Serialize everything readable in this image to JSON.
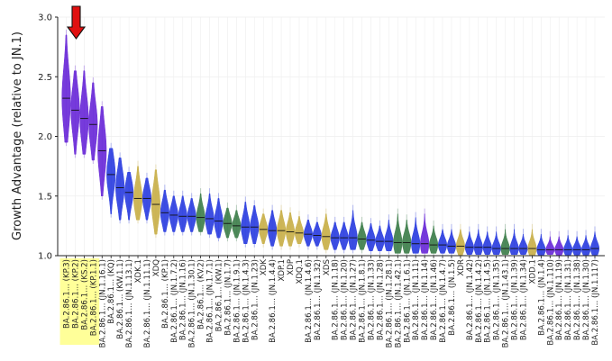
{
  "chart_data": {
    "type": "violin",
    "title": "",
    "xlabel": "",
    "ylabel": "Growth Advantage (relative to JN.1)",
    "ylim": [
      1.0,
      3.0
    ],
    "yticks": [
      "1.0",
      "1.5",
      "2.0",
      "2.5",
      "3.0"
    ],
    "grid": true,
    "legend": "none",
    "colors": {
      "purple": "#6a2ad8",
      "blue": "#2d3fe0",
      "green": "#3f7f4c",
      "gold": "#c9b04a",
      "highlight": "#ffff99",
      "arrow": "#e01010",
      "axis": "#222222",
      "grid": "#eeeeee"
    },
    "highlighted_labels": [
      "BA.2.86.1... (KP.3)",
      "BA.2.86.1... (KP.2)",
      "BA.2.86.1... (KS.2)",
      "BA.2.86.1... (KP.1.1)"
    ],
    "arrow_target": "BA.2.86.1... (KP.3)",
    "labels": [
      "BA.2.86.1... (KP.3)",
      "BA.2.86.1... (KP.2)",
      "BA.2.86.1... (KS.2)",
      "BA.2.86.1... (KP.1.1)",
      "BA.2.86.1... (JN.1.16.1)",
      "BA.2.86.1... (KQ)",
      "BA.2.86.1... (KW.1.1)",
      "BA.2.86.1... (JN.1.13.1)",
      "XDK.1",
      "BA.2.86.1... (JN.1.11.1)",
      "XDQ",
      "BA.2.86.1... (KP.1)",
      "BA.2.86.1... (JN.1.7.2)",
      "BA.2.86.1... (JN.1.16)",
      "BA.2.86.1... (JN.1.30.1)",
      "BA.2.86.1... (KV.2)",
      "BA.2.86.1... (JN.1.7.1)",
      "BA.2.86.1... (KW.1)",
      "BA.2.86.1... (JN.1.7)",
      "BA.2.86.1... (JN.1.9.1)",
      "BA.2.86.1... (JN.1.4.3)",
      "BA.2.86.1... (JN.1.23)",
      "XDK",
      "BA.2.86.1... (JN.1.4.4)",
      "XDP.1",
      "XDP",
      "XDQ.1",
      "BA.2.86.1... (JN.1.4.6)",
      "BA.2.86.1... (JN.1.32)",
      "XDS",
      "BA.2.86.1... (JN.1.18)",
      "BA.2.86.1... (JN.1.20)",
      "BA.2.86.1... (JN.1.27)",
      "BA.2.86.1... (JN.1.8.1)",
      "BA.2.86.1... (JN.1.33)",
      "BA.2.86.1... (JN.1.28)",
      "BA.2.86.1... (JN.1.28.1)",
      "BA.2.86.1... (JN.1.42.1)",
      "BA.2.86.1... (JN.1.6.1)",
      "BA.2.86.1... (JN.1.11)",
      "BA.2.86.1... (JN.1.14)",
      "BA.2.86.1... (JN.1.46)",
      "BA.2.86.1... (JN.1.4.7)",
      "BA.2.86.1... (JN.1.5)",
      "XDR",
      "BA.2.86.1... (JN.1.42)",
      "BA.2.86.1... (JN.1.4.2)",
      "BA.2.86.1... (JN.1.4.5)",
      "BA.2.86.1... (JN.1.35)",
      "BA.2.86.1... (JN.1.43.1)",
      "BA.2.86.1... (JN.1.39)",
      "BA.2.86.1... (JN.1.34)",
      "XDD.1",
      "BA.2.86.1... (JN.1.4)",
      "BA.2.86.1... (JN.1.110)",
      "BA.2.86.1... (JN.1.19)",
      "BA.2.86.1... (JN.1.31)",
      "BA.2.86.1... (JN.1.38)",
      "BA.2.86.1... (JN.1.30)",
      "BA.2.86.1... (JN.1.117)"
    ],
    "medians": [
      2.32,
      2.22,
      2.15,
      2.1,
      1.88,
      1.68,
      1.57,
      1.53,
      1.48,
      1.48,
      1.43,
      1.36,
      1.34,
      1.33,
      1.33,
      1.32,
      1.31,
      1.29,
      1.27,
      1.25,
      1.24,
      1.24,
      1.22,
      1.21,
      1.21,
      1.2,
      1.19,
      1.18,
      1.17,
      1.16,
      1.15,
      1.15,
      1.15,
      1.14,
      1.13,
      1.12,
      1.12,
      1.11,
      1.11,
      1.1,
      1.1,
      1.09,
      1.09,
      1.08,
      1.08,
      1.07,
      1.07,
      1.07,
      1.06,
      1.06,
      1.06,
      1.06,
      1.06,
      1.05,
      1.05,
      1.05,
      1.05,
      1.05,
      1.05,
      1.06
    ],
    "lows": [
      1.95,
      1.85,
      1.85,
      1.8,
      1.5,
      1.35,
      1.3,
      1.3,
      1.3,
      1.3,
      1.18,
      1.2,
      1.2,
      1.2,
      1.2,
      1.2,
      1.18,
      1.15,
      1.15,
      1.15,
      1.1,
      1.1,
      1.1,
      1.08,
      1.08,
      1.08,
      1.1,
      1.08,
      1.08,
      1.05,
      1.05,
      1.05,
      1.05,
      1.05,
      1.04,
      1.04,
      1.04,
      1.02,
      1.02,
      1.02,
      1.02,
      1.02,
      1.02,
      1.02,
      1.0,
      1.01,
      1.01,
      1.01,
      1.01,
      1.01,
      1.01,
      1.01,
      1.0,
      1.0,
      1.01,
      1.0,
      1.0,
      1.0,
      1.0,
      1.0
    ],
    "highs": [
      2.85,
      2.55,
      2.55,
      2.45,
      2.25,
      1.9,
      1.82,
      1.7,
      1.75,
      1.65,
      1.72,
      1.55,
      1.5,
      1.5,
      1.48,
      1.52,
      1.52,
      1.48,
      1.4,
      1.38,
      1.45,
      1.42,
      1.35,
      1.38,
      1.38,
      1.36,
      1.33,
      1.3,
      1.28,
      1.35,
      1.28,
      1.28,
      1.38,
      1.28,
      1.27,
      1.25,
      1.3,
      1.35,
      1.3,
      1.32,
      1.35,
      1.25,
      1.22,
      1.22,
      1.22,
      1.2,
      1.22,
      1.2,
      1.2,
      1.22,
      1.22,
      1.18,
      1.22,
      1.18,
      1.16,
      1.16,
      1.17,
      1.16,
      1.17,
      1.2
    ],
    "colorKeys": [
      "purple",
      "purple",
      "purple",
      "purple",
      "purple",
      "blue",
      "blue",
      "blue",
      "gold",
      "blue",
      "gold",
      "blue",
      "blue",
      "blue",
      "blue",
      "green",
      "blue",
      "blue",
      "green",
      "green",
      "blue",
      "blue",
      "gold",
      "blue",
      "gold",
      "gold",
      "gold",
      "blue",
      "blue",
      "gold",
      "blue",
      "blue",
      "blue",
      "green",
      "blue",
      "blue",
      "blue",
      "green",
      "green",
      "blue",
      "purple",
      "green",
      "blue",
      "blue",
      "gold",
      "blue",
      "blue",
      "blue",
      "blue",
      "green",
      "blue",
      "blue",
      "gold",
      "blue",
      "purple",
      "purple",
      "blue",
      "blue",
      "blue",
      "blue"
    ]
  }
}
